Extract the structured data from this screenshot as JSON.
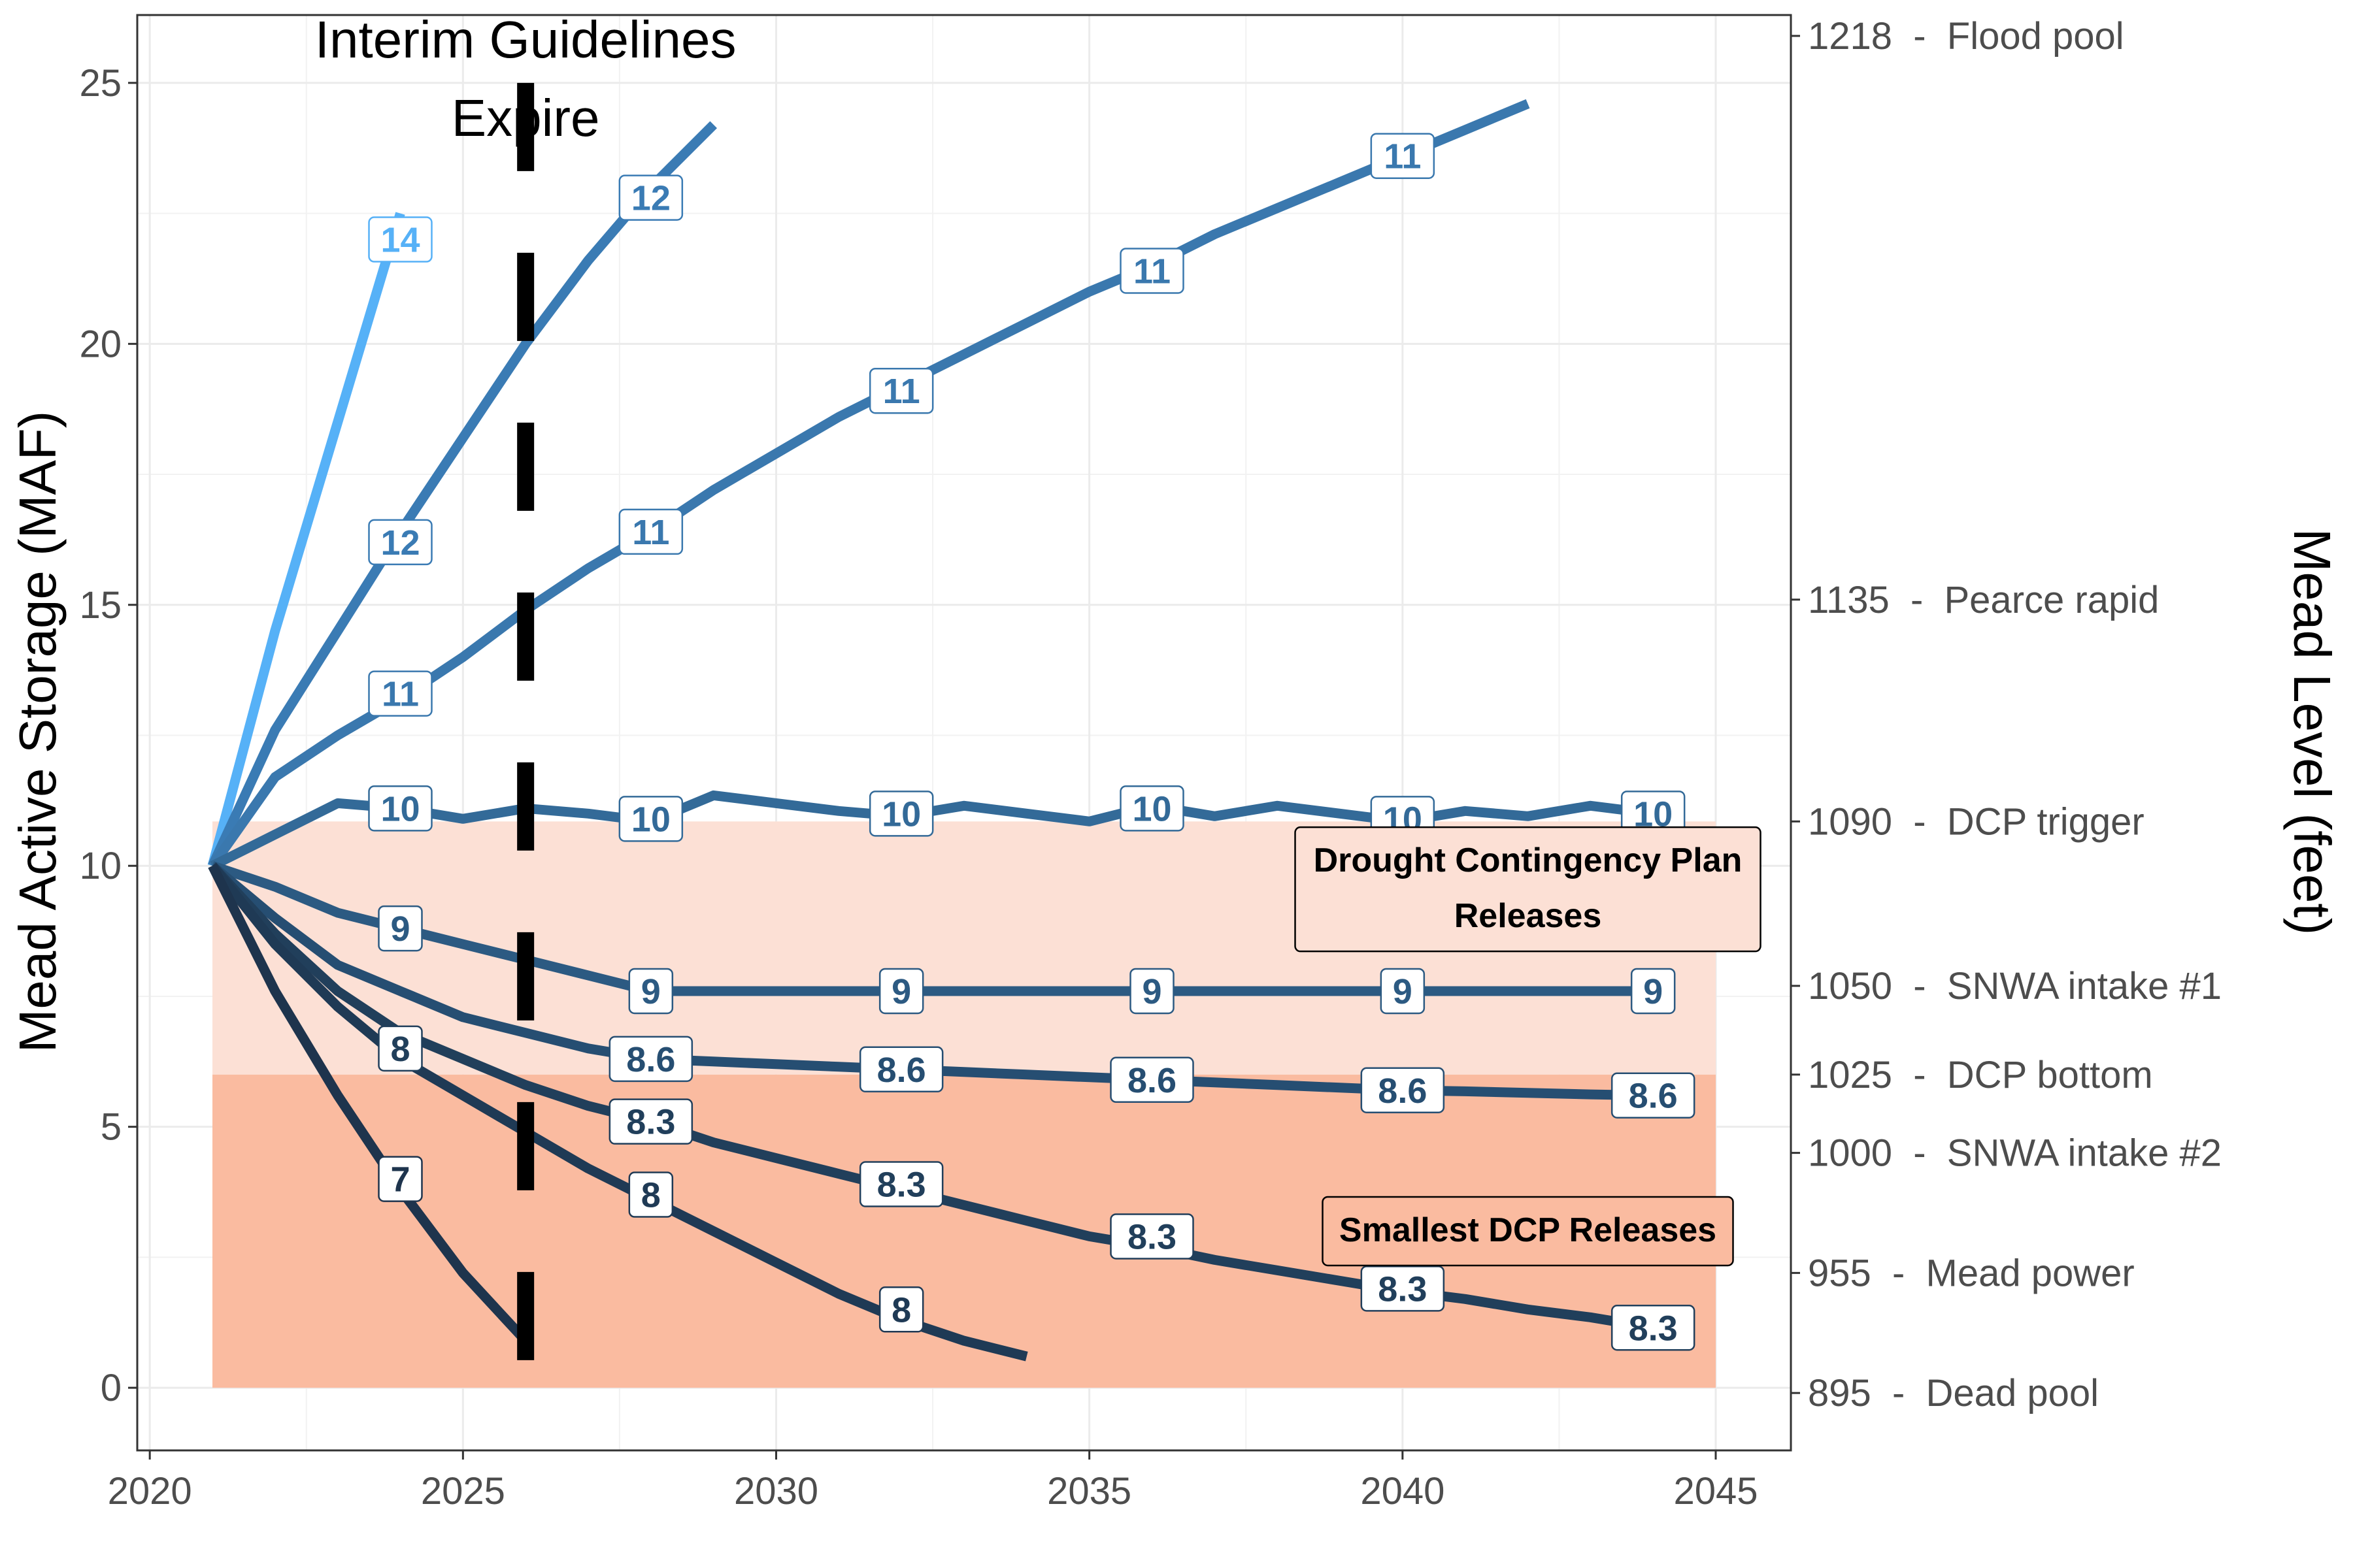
{
  "chart_data": {
    "type": "line",
    "xlabel": "",
    "ylabel": "Mead Active Storage (MAF)",
    "y2label": "Mead Level (feet)",
    "xlim": [
      2019.8,
      2046.2
    ],
    "ylim": [
      -1.2,
      26.3
    ],
    "x_ticks": [
      2020,
      2025,
      2030,
      2035,
      2040,
      2045
    ],
    "y_ticks": [
      0,
      5,
      10,
      15,
      20,
      25
    ],
    "grid": true,
    "right_axis_ticks": [
      {
        "y": 25.9,
        "label": "1218  -  Flood pool"
      },
      {
        "y": 15.1,
        "label": "1135  -  Pearce rapid"
      },
      {
        "y": 10.85,
        "label": "1090  -  DCP trigger"
      },
      {
        "y": 7.7,
        "label": "1050  -  SNWA intake #1"
      },
      {
        "y": 6.0,
        "label": "1025  -  DCP bottom"
      },
      {
        "y": 4.5,
        "label": "1000  -  SNWA intake #2"
      },
      {
        "y": 2.2,
        "label": "955  -  Mead power"
      },
      {
        "y": -0.1,
        "label": "895  -  Dead pool"
      }
    ],
    "bands": [
      {
        "name": "Drought Contingency Plan Releases",
        "x": [
          2021,
          2045
        ],
        "y": [
          6.0,
          10.85
        ],
        "color": "#fce0d5"
      },
      {
        "name": "Smallest DCP Releases",
        "x": [
          2021,
          2045
        ],
        "y": [
          0,
          6.0
        ],
        "color": "#fabba0"
      }
    ],
    "vline": {
      "x": 2026,
      "label_lines": [
        "Interim Guidelines",
        "Expire"
      ]
    },
    "annotations": [
      {
        "x": 2042.0,
        "y": 9.55,
        "lines": [
          "Drought Contingency Plan",
          "Releases"
        ]
      },
      {
        "x": 2042.0,
        "y": 3.0,
        "lines": [
          "Smallest DCP Releases"
        ]
      }
    ],
    "series": [
      {
        "color": "#56b1f7",
        "x": [
          2021,
          2022,
          2023,
          2024
        ],
        "y": [
          10.0,
          14.5,
          18.5,
          22.5
        ],
        "labels": [
          {
            "x": 2024,
            "y": 22.0,
            "text": "14"
          }
        ]
      },
      {
        "color": "#3a7bb4",
        "x": [
          2021,
          2022,
          2023,
          2024,
          2025,
          2026,
          2027,
          2028,
          2029
        ],
        "y": [
          10.0,
          12.6,
          14.5,
          16.4,
          18.2,
          20.0,
          21.6,
          23.0,
          24.2
        ],
        "labels": [
          {
            "x": 2024,
            "y": 16.2,
            "text": "12"
          },
          {
            "x": 2028,
            "y": 22.8,
            "text": "12"
          }
        ]
      },
      {
        "color": "#3a78ae",
        "x": [
          2021,
          2022,
          2023,
          2024,
          2025,
          2026,
          2027,
          2028,
          2029,
          2030,
          2031,
          2032,
          2033,
          2034,
          2035,
          2036,
          2037,
          2038,
          2039,
          2040,
          2041,
          2042
        ],
        "y": [
          10.0,
          11.7,
          12.5,
          13.2,
          14.0,
          14.9,
          15.7,
          16.4,
          17.2,
          17.9,
          18.6,
          19.2,
          19.8,
          20.4,
          21.0,
          21.5,
          22.1,
          22.6,
          23.1,
          23.6,
          24.1,
          24.6
        ],
        "labels": [
          {
            "x": 2024,
            "y": 13.3,
            "text": "11"
          },
          {
            "x": 2028,
            "y": 16.4,
            "text": "11"
          },
          {
            "x": 2032,
            "y": 19.1,
            "text": "11"
          },
          {
            "x": 2036,
            "y": 21.4,
            "text": "11"
          },
          {
            "x": 2040,
            "y": 23.6,
            "text": "11"
          }
        ]
      },
      {
        "color": "#336a98",
        "x": [
          2021,
          2022,
          2023,
          2024,
          2025,
          2026,
          2027,
          2028,
          2029,
          2030,
          2031,
          2032,
          2033,
          2034,
          2035,
          2036,
          2037,
          2038,
          2039,
          2040,
          2041,
          2042,
          2043,
          2044
        ],
        "y": [
          10.0,
          10.6,
          11.2,
          11.1,
          10.9,
          11.1,
          11.0,
          10.85,
          11.35,
          11.2,
          11.05,
          10.95,
          11.15,
          11.0,
          10.85,
          11.15,
          10.95,
          11.15,
          11.0,
          10.85,
          11.05,
          10.95,
          11.15,
          11.0
        ],
        "labels": [
          {
            "x": 2024,
            "y": 11.1,
            "text": "10"
          },
          {
            "x": 2028,
            "y": 10.9,
            "text": "10"
          },
          {
            "x": 2032,
            "y": 11.0,
            "text": "10"
          },
          {
            "x": 2036,
            "y": 11.1,
            "text": "10"
          },
          {
            "x": 2040,
            "y": 10.9,
            "text": "10"
          },
          {
            "x": 2044,
            "y": 11.0,
            "text": "10"
          }
        ]
      },
      {
        "color": "#2c5a82",
        "x": [
          2021,
          2022,
          2023,
          2024,
          2025,
          2026,
          2027,
          2028,
          2029,
          2030,
          2031,
          2032,
          2033,
          2034,
          2035,
          2036,
          2037,
          2038,
          2039,
          2040,
          2041,
          2042,
          2043,
          2044
        ],
        "y": [
          10.0,
          9.6,
          9.1,
          8.8,
          8.5,
          8.2,
          7.9,
          7.6,
          7.6,
          7.6,
          7.6,
          7.6,
          7.6,
          7.6,
          7.6,
          7.6,
          7.6,
          7.6,
          7.6,
          7.6,
          7.6,
          7.6,
          7.6,
          7.6
        ],
        "labels": [
          {
            "x": 2024,
            "y": 8.8,
            "text": "9"
          },
          {
            "x": 2028,
            "y": 7.6,
            "text": "9"
          },
          {
            "x": 2032,
            "y": 7.6,
            "text": "9"
          },
          {
            "x": 2036,
            "y": 7.6,
            "text": "9"
          },
          {
            "x": 2040,
            "y": 7.6,
            "text": "9"
          },
          {
            "x": 2044,
            "y": 7.6,
            "text": "9"
          }
        ]
      },
      {
        "color": "#264e72",
        "x": [
          2021,
          2022,
          2023,
          2024,
          2025,
          2026,
          2027,
          2028,
          2029,
          2030,
          2031,
          2032,
          2033,
          2034,
          2035,
          2036,
          2037,
          2038,
          2039,
          2040,
          2041,
          2042,
          2043,
          2044
        ],
        "y": [
          10.0,
          9.0,
          8.1,
          7.6,
          7.1,
          6.8,
          6.5,
          6.3,
          6.25,
          6.2,
          6.15,
          6.1,
          6.05,
          6.0,
          5.95,
          5.9,
          5.85,
          5.8,
          5.75,
          5.7,
          5.68,
          5.65,
          5.62,
          5.6
        ],
        "labels": [
          {
            "x": 2028,
            "y": 6.3,
            "text": "8.6"
          },
          {
            "x": 2032,
            "y": 6.1,
            "text": "8.6"
          },
          {
            "x": 2036,
            "y": 5.9,
            "text": "8.6"
          },
          {
            "x": 2040,
            "y": 5.7,
            "text": "8.6"
          },
          {
            "x": 2044,
            "y": 5.6,
            "text": "8.6"
          }
        ]
      },
      {
        "color": "#213f5b",
        "x": [
          2021,
          2022,
          2023,
          2024,
          2025,
          2026,
          2027,
          2028,
          2029,
          2030,
          2031,
          2032,
          2033,
          2034,
          2035,
          2036,
          2037,
          2038,
          2039,
          2040,
          2041,
          2042,
          2043,
          2044
        ],
        "y": [
          10.0,
          8.7,
          7.6,
          6.8,
          6.3,
          5.8,
          5.4,
          5.1,
          4.7,
          4.4,
          4.1,
          3.8,
          3.5,
          3.2,
          2.9,
          2.7,
          2.45,
          2.25,
          2.05,
          1.85,
          1.7,
          1.5,
          1.35,
          1.15
        ],
        "labels": [
          {
            "x": 2024,
            "y": 6.5,
            "text": "8"
          },
          {
            "x": 2028,
            "y": 5.1,
            "text": "8.3"
          },
          {
            "x": 2032,
            "y": 3.9,
            "text": "8.3"
          },
          {
            "x": 2036,
            "y": 2.9,
            "text": "8.3"
          },
          {
            "x": 2040,
            "y": 1.9,
            "text": "8.3"
          },
          {
            "x": 2044,
            "y": 1.15,
            "text": "8.3"
          }
        ]
      },
      {
        "color": "#1f3a55",
        "x": [
          2021,
          2022,
          2023,
          2024,
          2025,
          2026,
          2027,
          2028,
          2029,
          2030,
          2031,
          2032,
          2033,
          2034
        ],
        "y": [
          10.0,
          8.5,
          7.3,
          6.3,
          5.6,
          4.9,
          4.2,
          3.6,
          3.0,
          2.4,
          1.8,
          1.3,
          0.9,
          0.6
        ],
        "labels": [
          {
            "x": 2028,
            "y": 3.7,
            "text": "8"
          },
          {
            "x": 2032,
            "y": 1.5,
            "text": "8"
          }
        ]
      },
      {
        "color": "#1e344d",
        "x": [
          2021,
          2022,
          2023,
          2024,
          2025,
          2026
        ],
        "y": [
          10.0,
          7.6,
          5.6,
          3.8,
          2.2,
          0.9
        ],
        "labels": [
          {
            "x": 2024,
            "y": 4.0,
            "text": "7"
          }
        ]
      }
    ]
  }
}
